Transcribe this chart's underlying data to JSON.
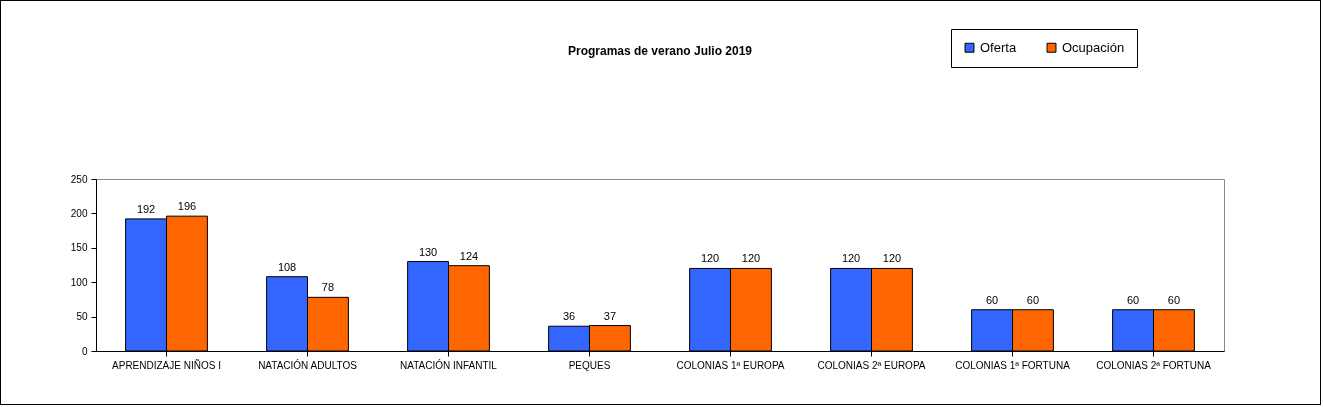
{
  "chart_data": {
    "type": "bar",
    "title": "Programas de verano Julio 2019",
    "categories": [
      "APRENDIZAJE NIÑOS I",
      "NATACIÓN ADULTOS",
      "NATACIÓN INFANTIL",
      "PEQUES",
      "COLONIAS 1ª EUROPA",
      "COLONIAS 2ª EUROPA",
      "COLONIAS 1ª FORTUNA",
      "COLONIAS 2ª FORTUNA"
    ],
    "series": [
      {
        "name": "Oferta",
        "color": "#3366ff",
        "values": [
          192,
          108,
          130,
          36,
          120,
          120,
          60,
          60
        ]
      },
      {
        "name": "Ocupación",
        "color": "#ff6600",
        "values": [
          196,
          78,
          124,
          37,
          120,
          120,
          60,
          60
        ]
      }
    ],
    "ylim": [
      0,
      250
    ],
    "yticks": [
      0,
      50,
      100,
      150,
      200,
      250
    ],
    "grid": false,
    "legend": "top right",
    "data_labels": true
  }
}
